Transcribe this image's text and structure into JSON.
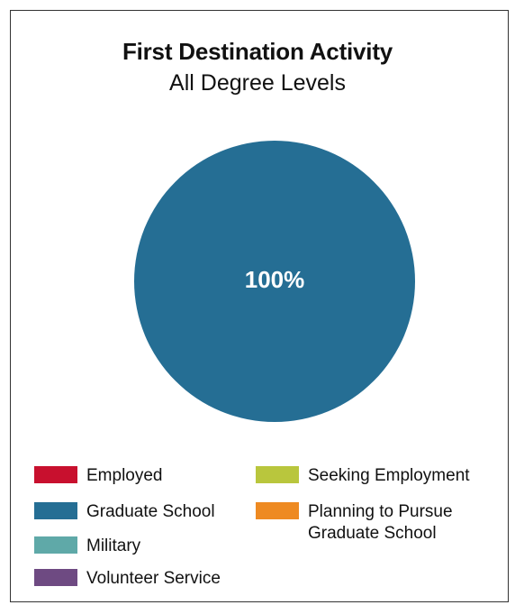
{
  "chart_data": {
    "type": "pie",
    "title": "First Destination Activity",
    "subtitle": "All Degree Levels",
    "slices": [
      {
        "label": "Graduate School",
        "value": 100,
        "display": "100%",
        "color": "#256e94"
      }
    ],
    "legend": {
      "placement": "bottom",
      "items": [
        {
          "label": "Employed",
          "color": "#c8102e"
        },
        {
          "label": "Graduate School",
          "color": "#256e94"
        },
        {
          "label": "Military",
          "color": "#5fa9a8"
        },
        {
          "label": "Volunteer Service",
          "color": "#6e4a82"
        },
        {
          "label": "Seeking Employment",
          "color": "#b9c63d"
        },
        {
          "label": "Planning to Pursue Graduate School",
          "color": "#ee8a22"
        }
      ]
    }
  }
}
